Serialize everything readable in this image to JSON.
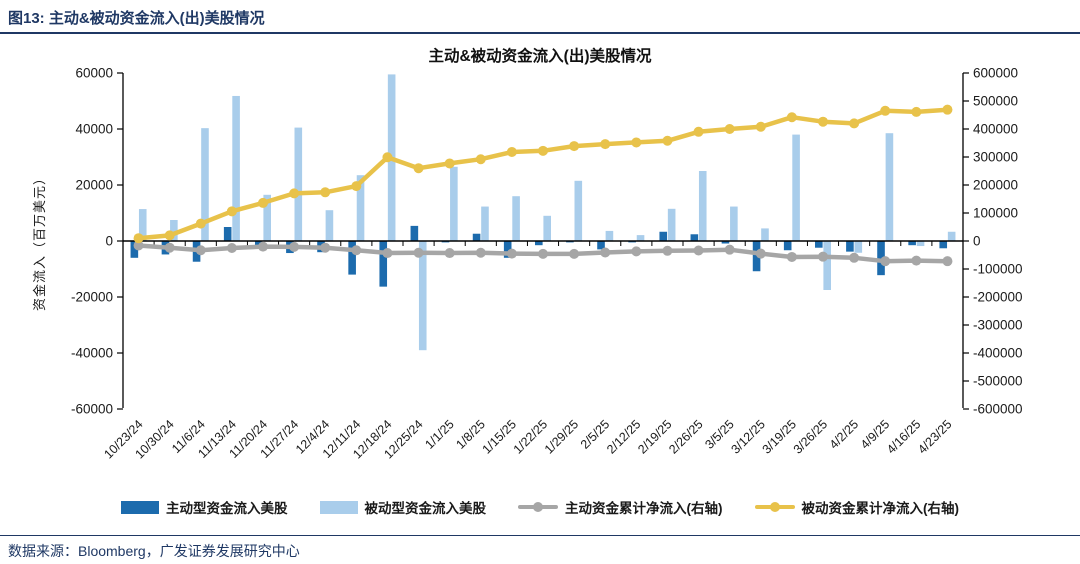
{
  "figure": {
    "header": "图13: 主动&被动资金流入(出)美股情况",
    "source": "数据来源：Bloomberg，广发证券发展研究中心"
  },
  "colors": {
    "navy": "#1F3864",
    "active_bar": "#1C6BAD",
    "passive_bar": "#A9CDEB",
    "active_line": "#A6A6A6",
    "passive_line": "#E8C24A",
    "axis": "#000000"
  },
  "chart_data": {
    "type": "bar",
    "subtype": "combo-bar-line",
    "title": "主动&被动资金流入(出)美股情况",
    "categories": [
      "10/23/24",
      "10/30/24",
      "11/6/24",
      "11/13/24",
      "11/20/24",
      "11/27/24",
      "12/4/24",
      "12/11/24",
      "12/18/24",
      "12/25/24",
      "1/1/25",
      "1/8/25",
      "1/15/25",
      "1/22/25",
      "1/29/25",
      "2/5/25",
      "2/12/25",
      "2/19/25",
      "2/26/25",
      "3/5/25",
      "3/12/25",
      "3/19/25",
      "3/26/25",
      "4/2/25",
      "4/9/25",
      "4/16/25",
      "4/23/25"
    ],
    "series": [
      {
        "name": "主动型资金流入美股",
        "kind": "bar",
        "axis": "left",
        "color": "#1C6BAD",
        "values": [
          -6000,
          -4800,
          -7400,
          5000,
          -1500,
          -4300,
          -4000,
          -12000,
          -16300,
          5400,
          -500,
          2600,
          -6000,
          -1500,
          -500,
          -3000,
          -500,
          3300,
          2400,
          -900,
          -10800,
          -3300,
          -2400,
          -3800,
          -12200,
          -1500,
          -2600
        ]
      },
      {
        "name": "被动型资金流入美股",
        "kind": "bar",
        "axis": "left",
        "color": "#A9CDEB",
        "values": [
          11400,
          7500,
          40300,
          51800,
          16500,
          40500,
          11000,
          23500,
          59500,
          -39000,
          26500,
          12300,
          16000,
          9000,
          21500,
          3600,
          2100,
          11500,
          25000,
          12300,
          4500,
          38000,
          -17500,
          -4200,
          38500,
          -1800,
          3300
        ]
      },
      {
        "name": "主动资金累计净流入(右轴)",
        "kind": "line",
        "axis": "right",
        "color": "#A6A6A6",
        "values": [
          -16000,
          -24000,
          -33000,
          -25000,
          -20000,
          -21000,
          -24000,
          -33000,
          -43000,
          -42000,
          -43000,
          -42000,
          -45000,
          -46000,
          -46000,
          -41000,
          -37000,
          -35000,
          -34000,
          -31000,
          -45000,
          -57000,
          -56000,
          -60000,
          -72000,
          -70000,
          -72000
        ]
      },
      {
        "name": "被动资金累计净流入(右轴)",
        "kind": "line",
        "axis": "right",
        "color": "#E8C24A",
        "values": [
          10000,
          20000,
          62000,
          106000,
          136000,
          170000,
          174000,
          196000,
          299000,
          260000,
          277000,
          292000,
          318000,
          322000,
          339000,
          346000,
          352000,
          358000,
          390000,
          400000,
          408000,
          442000,
          426000,
          420000,
          465000,
          461000,
          469000
        ]
      }
    ],
    "left_axis": {
      "label": "资金流入（百万美元）",
      "min": -60000,
      "max": 60000,
      "step": 20000
    },
    "right_axis": {
      "min": -600000,
      "max": 600000,
      "step": 100000
    },
    "legend_position": "bottom",
    "grid": false
  }
}
